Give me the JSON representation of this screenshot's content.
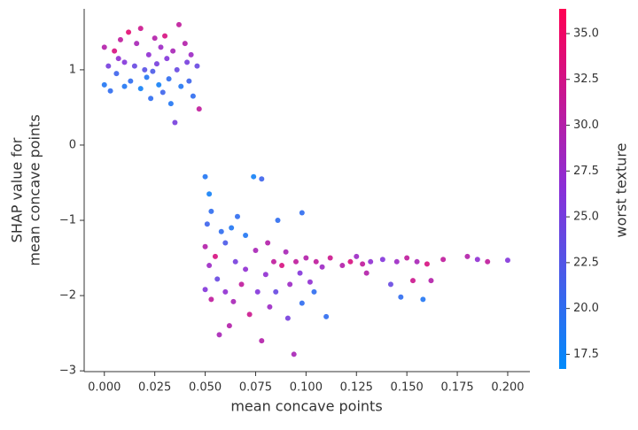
{
  "chart_data": {
    "type": "scatter",
    "xlabel": "mean concave points",
    "ylabel": [
      "SHAP value for",
      "mean concave points"
    ],
    "colorbar_label": "worst texture",
    "colormap": [
      "#008bfb",
      "#8a2fd8",
      "#ff0052"
    ],
    "clim": [
      16.7,
      36.35
    ],
    "cticks": [
      {
        "value": 17.5,
        "label": "17.5"
      },
      {
        "value": 20,
        "label": "20.0"
      },
      {
        "value": 22.5,
        "label": "22.5"
      },
      {
        "value": 25,
        "label": "25.0"
      },
      {
        "value": 27.5,
        "label": "27.5"
      },
      {
        "value": 30,
        "label": "30.0"
      },
      {
        "value": 32.5,
        "label": "32.5"
      },
      {
        "value": 35,
        "label": "35.0"
      }
    ],
    "xlim": [
      -0.01,
      0.211
    ],
    "ylim": [
      -3.01,
      1.81
    ],
    "xticks": [
      {
        "value": 0,
        "label": "0.000"
      },
      {
        "value": 0.025,
        "label": "0.025"
      },
      {
        "value": 0.05,
        "label": "0.050"
      },
      {
        "value": 0.075,
        "label": "0.075"
      },
      {
        "value": 0.1,
        "label": "0.100"
      },
      {
        "value": 0.125,
        "label": "0.125"
      },
      {
        "value": 0.15,
        "label": "0.150"
      },
      {
        "value": 0.175,
        "label": "0.175"
      },
      {
        "value": 0.2,
        "label": "0.200"
      }
    ],
    "yticks": [
      1,
      0,
      {
        "value": -1,
        "label": "−1"
      },
      {
        "value": -2,
        "label": "−2"
      },
      {
        "value": -3,
        "label": "−3"
      }
    ],
    "x": [
      0.0,
      0.002,
      0.0,
      0.003,
      0.005,
      0.006,
      0.008,
      0.01,
      0.01,
      0.012,
      0.013,
      0.015,
      0.016,
      0.018,
      0.018,
      0.02,
      0.021,
      0.022,
      0.023,
      0.025,
      0.026,
      0.027,
      0.028,
      0.029,
      0.03,
      0.031,
      0.032,
      0.033,
      0.034,
      0.035,
      0.036,
      0.037,
      0.038,
      0.04,
      0.041,
      0.042,
      0.043,
      0.044,
      0.046,
      0.047,
      0.007,
      0.024,
      0.05,
      0.052,
      0.053,
      0.051,
      0.05,
      0.052,
      0.05,
      0.053,
      0.055,
      0.056,
      0.057,
      0.058,
      0.06,
      0.06,
      0.062,
      0.063,
      0.064,
      0.065,
      0.066,
      0.068,
      0.07,
      0.07,
      0.072,
      0.074,
      0.075,
      0.076,
      0.078,
      0.078,
      0.08,
      0.081,
      0.082,
      0.084,
      0.085,
      0.086,
      0.088,
      0.09,
      0.091,
      0.092,
      0.094,
      0.095,
      0.097,
      0.098,
      0.1,
      0.102,
      0.104,
      0.105,
      0.108,
      0.11,
      0.112,
      0.118,
      0.122,
      0.125,
      0.128,
      0.13,
      0.132,
      0.138,
      0.142,
      0.145,
      0.147,
      0.15,
      0.153,
      0.155,
      0.158,
      0.16,
      0.162,
      0.168,
      0.18,
      0.185,
      0.19,
      0.2,
      0.098
    ],
    "y": [
      1.3,
      1.05,
      0.8,
      0.72,
      1.25,
      0.95,
      1.4,
      1.1,
      0.78,
      1.5,
      0.85,
      1.05,
      1.35,
      0.75,
      1.55,
      1.0,
      0.9,
      1.2,
      0.62,
      1.42,
      1.08,
      0.8,
      1.3,
      0.7,
      1.45,
      1.15,
      0.88,
      0.55,
      1.25,
      0.3,
      1.0,
      1.6,
      0.78,
      1.35,
      1.1,
      0.85,
      1.2,
      0.65,
      1.05,
      0.48,
      1.15,
      0.98,
      -0.42,
      -0.65,
      -0.88,
      -1.05,
      -1.35,
      -1.6,
      -1.92,
      -2.05,
      -1.48,
      -1.78,
      -2.52,
      -1.15,
      -1.3,
      -1.95,
      -2.4,
      -1.1,
      -2.08,
      -1.55,
      -0.95,
      -1.85,
      -1.2,
      -1.65,
      -2.25,
      -0.42,
      -1.4,
      -1.95,
      -2.6,
      -0.45,
      -1.72,
      -1.3,
      -2.15,
      -1.55,
      -1.95,
      -1.0,
      -1.6,
      -1.42,
      -2.3,
      -1.85,
      -2.78,
      -1.55,
      -1.7,
      -2.1,
      -1.5,
      -1.82,
      -1.95,
      -1.55,
      -1.62,
      -2.28,
      -1.5,
      -1.6,
      -1.55,
      -1.48,
      -1.58,
      -1.7,
      -1.55,
      -1.52,
      -1.85,
      -1.55,
      -2.02,
      -1.5,
      -1.8,
      -1.55,
      -2.05,
      -1.58,
      -1.8,
      -1.52,
      -1.48,
      -1.52,
      -1.55,
      -1.53,
      -0.9
    ],
    "c": [
      30,
      25,
      19,
      20,
      33,
      21,
      31,
      26,
      19,
      34,
      20,
      24,
      29,
      18,
      32,
      23,
      19,
      27,
      20,
      30,
      25,
      18,
      28,
      21,
      33,
      26,
      20,
      19,
      29,
      25,
      24,
      31,
      19,
      30,
      25,
      21,
      28,
      20,
      24,
      31,
      27,
      22,
      19,
      18,
      20,
      21,
      30,
      28,
      26,
      31,
      33,
      24,
      29,
      20,
      22,
      27,
      30,
      19,
      29,
      25,
      20,
      31,
      19,
      27,
      32,
      18,
      29,
      26,
      30,
      21,
      27,
      30,
      28,
      31,
      24,
      20,
      33,
      29,
      25,
      28,
      29,
      31,
      26,
      20,
      30,
      27,
      20,
      31,
      28,
      20,
      32,
      30,
      33,
      28,
      31,
      30,
      27,
      26,
      24,
      28,
      20,
      31,
      32,
      29,
      19,
      33,
      30,
      31,
      30,
      27,
      31,
      26,
      20
    ]
  }
}
